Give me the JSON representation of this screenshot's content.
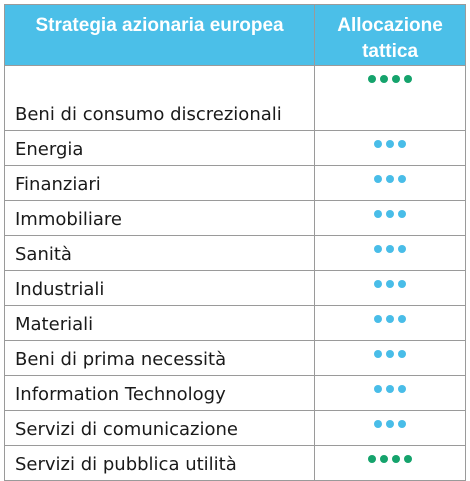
{
  "header": {
    "sector_col": "Strategia azionaria europea",
    "alloc_col": "Allocazione tattica"
  },
  "colors": {
    "header_bg": "#4bbfe8",
    "green_dot": "#15a36c",
    "blue_dot": "#49bde8"
  },
  "rows": [
    {
      "sector": "Beni di consumo discrezionali",
      "dots": 4,
      "color": "#15a36c"
    },
    {
      "sector": "Energia",
      "dots": 3,
      "color": "#49bde8"
    },
    {
      "sector": "Finanziari",
      "dots": 3,
      "color": "#49bde8"
    },
    {
      "sector": "Immobiliare",
      "dots": 3,
      "color": "#49bde8"
    },
    {
      "sector": "Sanità",
      "dots": 3,
      "color": "#49bde8"
    },
    {
      "sector": "Industriali",
      "dots": 3,
      "color": "#49bde8"
    },
    {
      "sector": "Materiali",
      "dots": 3,
      "color": "#49bde8"
    },
    {
      "sector": "Beni di prima necessità",
      "dots": 3,
      "color": "#49bde8"
    },
    {
      "sector": "Information Technology",
      "dots": 3,
      "color": "#49bde8"
    },
    {
      "sector": "Servizi di comunicazione",
      "dots": 3,
      "color": "#49bde8"
    },
    {
      "sector": "Servizi di pubblica utilità",
      "dots": 4,
      "color": "#15a36c"
    }
  ]
}
